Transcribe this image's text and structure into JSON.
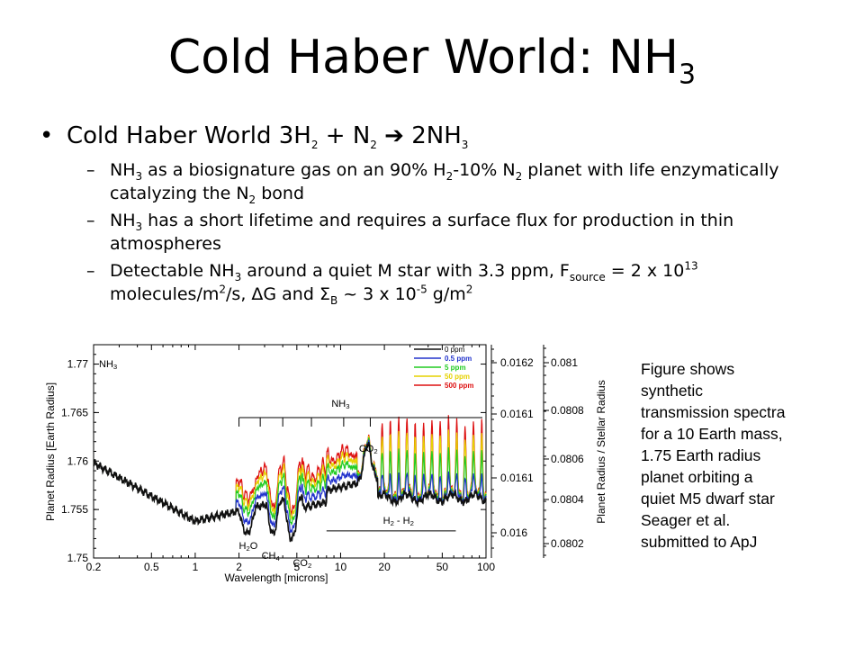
{
  "title": {
    "main": "Cold Haber World: NH",
    "sub": "3"
  },
  "bullet": {
    "marker": "•",
    "text_a": "Cold Haber World 3H",
    "sub_a": "2",
    "text_b": " + N",
    "sub_b": "2",
    "arrow": " ➔ ",
    "text_c": " 2NH",
    "sub_c": "3"
  },
  "sub_bullets": [
    {
      "dash": "–",
      "p1": "NH",
      "s1": "3",
      "p2": " as a biosignature gas on an 90% H",
      "s2": "2",
      "p3": "-10% N",
      "s3": "2",
      "p4": " planet with life enzymatically catalyzing the N",
      "s4": "2",
      "p5": " bond"
    },
    {
      "dash": "–",
      "p1": "NH",
      "s1": "3",
      "p2": " has a short lifetime and requires a surface flux for production in thin atmospheres"
    },
    {
      "dash": "–",
      "p1": "Detectable NH",
      "s1": "3",
      "p2": " around a quiet M star with 3.3 ppm, F",
      "s2": "source",
      "p3": " = 2 x 10",
      "sup1": "13",
      "p4": " molecules/m",
      "sup2": "2",
      "p5": "/s, ΔG and Σ",
      "s3": "B",
      "p6": " ~ 3 x 10",
      "sup3": "-5",
      "p7": " g/m",
      "sup4": "2"
    }
  ],
  "caption": [
    "Figure shows",
    "synthetic",
    "transmission spectra",
    "for a 10 Earth mass,",
    "1.75 Earth radius",
    "planet orbiting a",
    "quiet M5 dwarf star",
    "Seager et al.",
    "submitted to ApJ"
  ],
  "chart_data": {
    "type": "line",
    "xscale": "log",
    "xlim": [
      0.2,
      100
    ],
    "ylim": [
      1.75,
      1.772
    ],
    "x_ticks": [
      "0.2",
      "0.5",
      "1",
      "2",
      "5",
      "10",
      "20",
      "50",
      "100"
    ],
    "x_tick_values": [
      0.2,
      0.5,
      1,
      2,
      5,
      10,
      20,
      50,
      100
    ],
    "y_ticks": [
      "1.75",
      "1.755",
      "1.76",
      "1.765",
      "1.77"
    ],
    "y_tick_values": [
      1.75,
      1.755,
      1.76,
      1.765,
      1.77
    ],
    "xlabel": "Wavelength [microns]",
    "ylabel": "Planet Radius [Earth Radius]",
    "right_ylabel": "Planet Radius / Stellar Radius",
    "right_axis1_ticks": [
      "0.0162",
      "0.0161",
      "0.0161",
      "0.016"
    ],
    "right_axis2_ticks": [
      "0.081",
      "0.0808",
      "0.0806",
      "0.0804",
      "0.0802"
    ],
    "corner_label": {
      "a": "NH",
      "b": "3"
    },
    "series": [
      {
        "name": "0 ppm",
        "color": "#111111",
        "amp": 0.0
      },
      {
        "name": "0.5 ppm",
        "color": "#2233cc",
        "amp": 0.3
      },
      {
        "name": "5 ppm",
        "color": "#22cc22",
        "amp": 0.6
      },
      {
        "name": "50 ppm",
        "color": "#e6d200",
        "amp": 0.82
      },
      {
        "name": "500 ppm",
        "color": "#dd1111",
        "amp": 1.0
      }
    ],
    "annotations": {
      "nh3_bracket": {
        "a": "NH",
        "b": "3",
        "x_ticks": [
          2,
          2.8,
          4,
          6.3,
          10.5,
          16,
          100
        ]
      },
      "co2_upper": {
        "a": "CO",
        "b": "2",
        "x": 15.5,
        "y": 1.7604
      },
      "h2o": {
        "a": "H",
        "b": "2",
        "c": "O",
        "x": 2.0,
        "y": 1.7513
      },
      "ch4": {
        "a": "CH",
        "b": "4",
        "x": 3.3,
        "y": 1.7503
      },
      "co2_lower": {
        "a": "CO",
        "b": "2",
        "x": 4.7,
        "y": 1.7497
      },
      "h2h2": {
        "a": "H",
        "b": "2",
        "c": " - H",
        "d": "2",
        "x1": 8,
        "x2": 62,
        "y": 1.7528
      }
    }
  }
}
